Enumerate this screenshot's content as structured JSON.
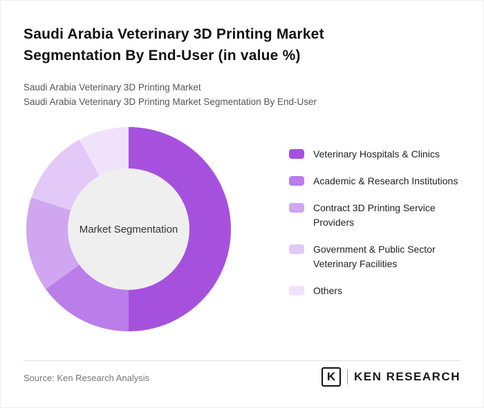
{
  "header": {
    "title": "Saudi Arabia Veterinary 3D Printing Market Segmentation By End-User (in value %)",
    "subtitle_line1": "Saudi Arabia Veterinary 3D Printing Market",
    "subtitle_line2": "Saudi Arabia Veterinary 3D Printing Market Segmentation By End-User"
  },
  "chart_data": {
    "type": "pie",
    "donut": true,
    "title": "Saudi Arabia Veterinary 3D Printing Market Segmentation By End-User (in value %)",
    "center_label": "Market Segmentation",
    "legend_position": "right",
    "data_labels_visible": false,
    "hole_color": "#efefef",
    "segments": [
      {
        "label": "Veterinary Hospitals & Clinics",
        "value": 50,
        "color": "#a551de"
      },
      {
        "label": "Academic & Research Institutions",
        "value": 15,
        "color": "#bb7dea"
      },
      {
        "label": "Contract 3D Printing Service Providers",
        "value": 15,
        "color": "#d0a6f1"
      },
      {
        "label": "Government & Public Sector Veterinary Facilities",
        "value": 12,
        "color": "#e3c9f7"
      },
      {
        "label": "Others",
        "value": 8,
        "color": "#f0e2fb"
      }
    ]
  },
  "footer": {
    "source": "Source: Ken Research Analysis",
    "logo_mark": "K",
    "logo_text": "KEN RESEARCH"
  }
}
